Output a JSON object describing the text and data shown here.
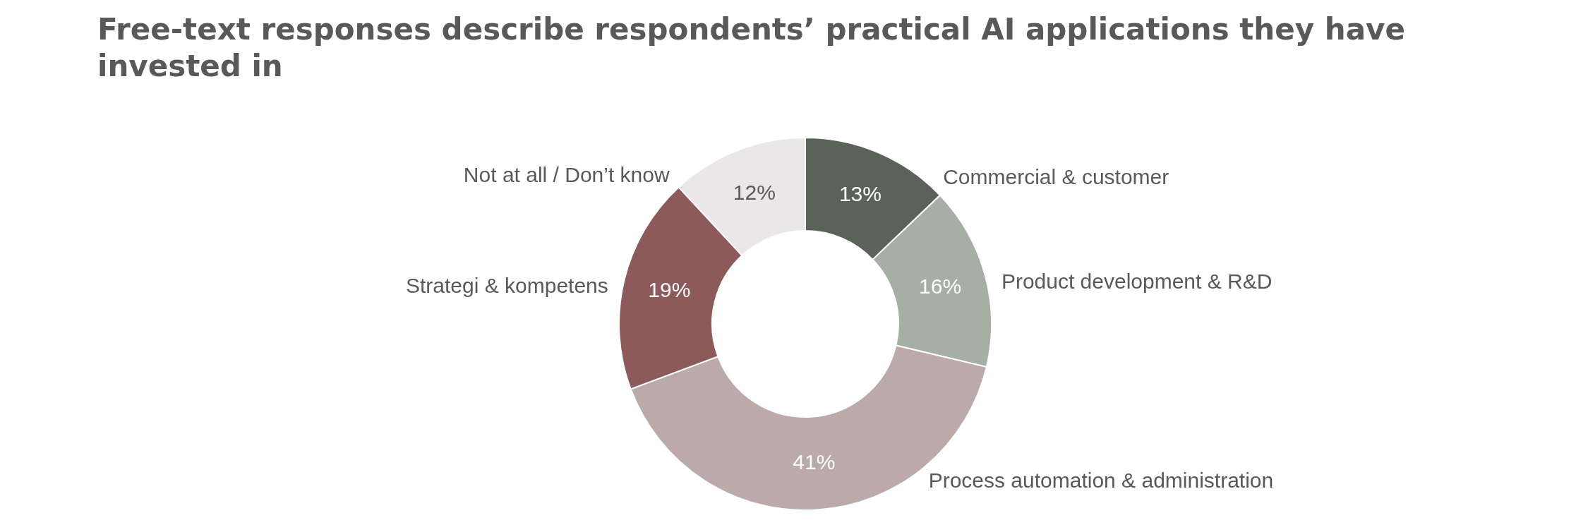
{
  "chart_data": {
    "type": "donut",
    "title": "Free-text responses describe respondents’ practical AI applications they have invested in",
    "categories": [
      "Commercial & customer",
      "Product development & R&D",
      "Process automation & administration",
      "Strategi & kompetens",
      "Not at all / Don’t know"
    ],
    "values": [
      13,
      16,
      41,
      19,
      12
    ],
    "value_labels": [
      "13%",
      "16%",
      "41%",
      "19%",
      "12%"
    ],
    "colors": [
      "#5a6358",
      "#a5afa3",
      "#bcaaab",
      "#8c5a5a",
      "#ebe7e8"
    ]
  }
}
